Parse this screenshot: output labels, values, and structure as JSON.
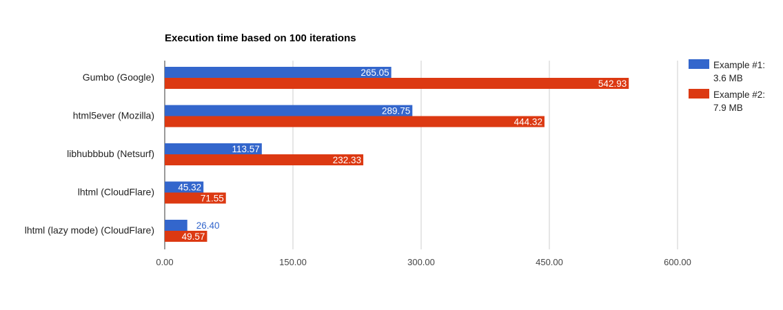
{
  "chart_data": {
    "type": "bar",
    "orientation": "horizontal",
    "title": "Execution time based on 100 iterations",
    "categories": [
      "Gumbo (Google)",
      "html5ever (Mozilla)",
      "libhubbbub (Netsurf)",
      "lhtml (CloudFlare)",
      "lhtml (lazy mode) (CloudFlare)"
    ],
    "series": [
      {
        "name": "Example #1: 3.6 MB",
        "legend_lines": [
          "Example #1:",
          "3.6 MB"
        ],
        "color": "#3366cc",
        "values": [
          265.05,
          289.75,
          113.57,
          45.32,
          26.4
        ],
        "labels": [
          "265.05",
          "289.75",
          "113.57",
          "45.32",
          "26.40"
        ]
      },
      {
        "name": "Example #2: 7.9 MB",
        "legend_lines": [
          "Example #2:",
          "7.9 MB"
        ],
        "color": "#dc3912",
        "values": [
          542.93,
          444.32,
          232.33,
          71.55,
          49.57
        ],
        "labels": [
          "542.93",
          "444.32",
          "232.33",
          "71.55",
          "49.57"
        ]
      }
    ],
    "xlim": [
      0,
      600
    ],
    "xticks": [
      0,
      150,
      300,
      450,
      600
    ],
    "xtick_labels": [
      "0.00",
      "150.00",
      "300.00",
      "450.00",
      "600.00"
    ],
    "xlabel": "",
    "ylabel": "",
    "grid": true,
    "legend_position": "right"
  }
}
